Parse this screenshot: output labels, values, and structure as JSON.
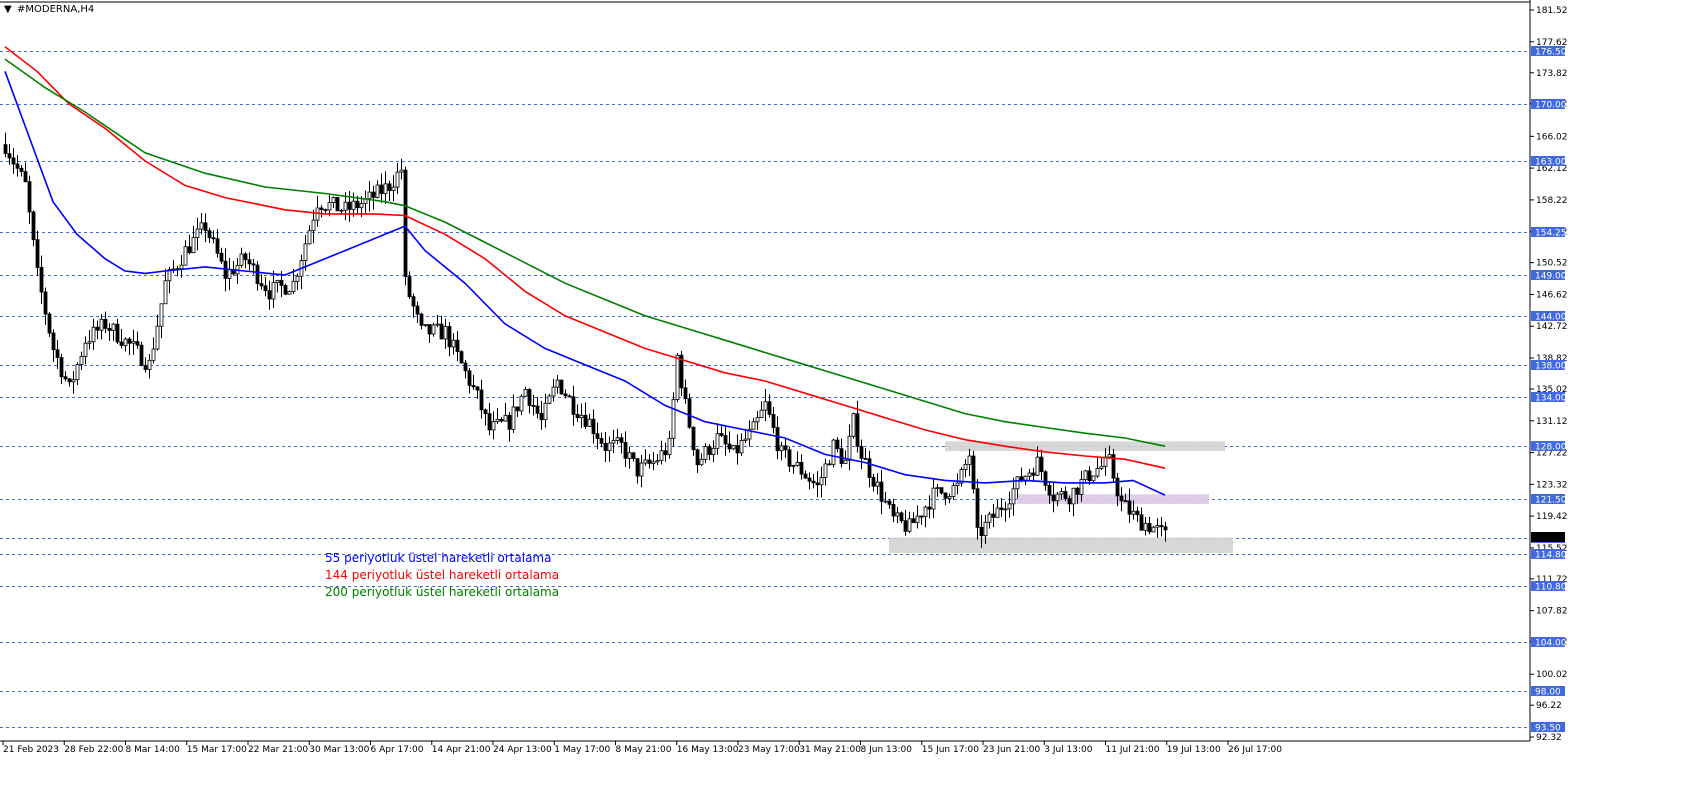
{
  "chart_data": {
    "type": "candlestick",
    "title": "#MODERNA,H4",
    "title_marker": "▼",
    "ylim": [
      92.32,
      181.52
    ],
    "y_ticks": [
      181.52,
      177.62,
      173.82,
      170.02,
      166.02,
      162.12,
      158.22,
      154.32,
      150.52,
      146.62,
      142.72,
      138.82,
      135.02,
      131.12,
      127.22,
      123.32,
      119.42,
      115.52,
      111.72,
      107.82,
      104.02,
      100.02,
      96.22,
      92.32
    ],
    "x_ticks": [
      "21 Feb 2023",
      "28 Feb 22:00",
      "8 Mar 14:00",
      "15 Mar 17:00",
      "22 Mar 21:00",
      "30 Mar 13:00",
      "6 Apr 17:00",
      "14 Apr 21:00",
      "24 Apr 13:00",
      "1 May 17:00",
      "8 May 21:00",
      "16 May 13:00",
      "23 May 17:00",
      "31 May 21:00",
      "8 Jun 13:00",
      "15 Jun 17:00",
      "23 Jun 21:00",
      "3 Jul 13:00",
      "11 Jul 21:00",
      "19 Jul 13:00",
      "26 Jul 17:00"
    ],
    "levels": [
      176.5,
      170.0,
      163.0,
      154.25,
      149.0,
      144.0,
      138.0,
      134.0,
      128.0,
      121.5,
      116.75,
      114.8,
      110.8,
      104.0,
      98.0,
      93.5
    ],
    "level_labels": [
      "176.50",
      "170.00",
      "163.00",
      "154.25",
      "149.00",
      "144.00",
      "138.00",
      "134.00",
      "128.00",
      "121.50",
      "116.75",
      "114.80",
      "110.80",
      "104.00",
      "98.00",
      "93.50"
    ],
    "current_price": 116.9,
    "zones": [
      {
        "name": "resistance-zone-128",
        "from_bar": 235,
        "to_bar": 305,
        "low": 127.4,
        "high": 128.6,
        "color": "#d3d3d3"
      },
      {
        "name": "zone-121-50",
        "from_bar": 253,
        "to_bar": 301,
        "low": 120.9,
        "high": 122.1,
        "color": "#dcc8e8"
      },
      {
        "name": "support-zone-115",
        "from_bar": 221,
        "to_bar": 307,
        "low": 114.9,
        "high": 116.8,
        "color": "#d3d3d3"
      }
    ],
    "price_path": [
      [
        0,
        165
      ],
      [
        5,
        160
      ],
      [
        8,
        149
      ],
      [
        12,
        140
      ],
      [
        16,
        135
      ],
      [
        20,
        141
      ],
      [
        25,
        143
      ],
      [
        32,
        140
      ],
      [
        36,
        138
      ],
      [
        40,
        148
      ],
      [
        45,
        152
      ],
      [
        50,
        155
      ],
      [
        55,
        149
      ],
      [
        60,
        151
      ],
      [
        66,
        147
      ],
      [
        72,
        148
      ],
      [
        78,
        158
      ],
      [
        85,
        157
      ],
      [
        90,
        158
      ],
      [
        96,
        160
      ],
      [
        99,
        162
      ],
      [
        100,
        148
      ],
      [
        104,
        142
      ],
      [
        110,
        142
      ],
      [
        114,
        138
      ],
      [
        118,
        134
      ],
      [
        121,
        130
      ],
      [
        126,
        131
      ],
      [
        130,
        135
      ],
      [
        134,
        131
      ],
      [
        138,
        136
      ],
      [
        142,
        133
      ],
      [
        146,
        131
      ],
      [
        150,
        128
      ],
      [
        154,
        128
      ],
      [
        158,
        125
      ],
      [
        162,
        126
      ],
      [
        166,
        128
      ],
      [
        168,
        139
      ],
      [
        170,
        133
      ],
      [
        173,
        126
      ],
      [
        178,
        129
      ],
      [
        182,
        127
      ],
      [
        187,
        130
      ],
      [
        190,
        133
      ],
      [
        194,
        127
      ],
      [
        199,
        125
      ],
      [
        203,
        123
      ],
      [
        207,
        128
      ],
      [
        210,
        126
      ],
      [
        212,
        131
      ],
      [
        214,
        127
      ],
      [
        218,
        123
      ],
      [
        222,
        119
      ],
      [
        226,
        118
      ],
      [
        232,
        122
      ],
      [
        238,
        123
      ],
      [
        241,
        127
      ],
      [
        243,
        117
      ],
      [
        248,
        120
      ],
      [
        254,
        124
      ],
      [
        258,
        126
      ],
      [
        262,
        122
      ],
      [
        266,
        122
      ],
      [
        272,
        125
      ],
      [
        276,
        126
      ],
      [
        279,
        121
      ],
      [
        283,
        119
      ],
      [
        287,
        118
      ],
      [
        290,
        117
      ]
    ],
    "series": [
      {
        "name": "55 periyotluk üstel hareketli ortalama",
        "color": "#0000ff",
        "points": [
          [
            0,
            174
          ],
          [
            6,
            166
          ],
          [
            12,
            158
          ],
          [
            18,
            154
          ],
          [
            25,
            151
          ],
          [
            30,
            149.5
          ],
          [
            35,
            149.2
          ],
          [
            40,
            149.5
          ],
          [
            50,
            150
          ],
          [
            60,
            149.5
          ],
          [
            70,
            149
          ],
          [
            75,
            150
          ],
          [
            85,
            152
          ],
          [
            95,
            154
          ],
          [
            100,
            155
          ],
          [
            105,
            152
          ],
          [
            115,
            148
          ],
          [
            125,
            143
          ],
          [
            135,
            140
          ],
          [
            145,
            138
          ],
          [
            155,
            136
          ],
          [
            165,
            133
          ],
          [
            175,
            131
          ],
          [
            185,
            130
          ],
          [
            195,
            129
          ],
          [
            205,
            127
          ],
          [
            215,
            126
          ],
          [
            225,
            124.5
          ],
          [
            235,
            123.8
          ],
          [
            245,
            123.5
          ],
          [
            255,
            123.8
          ],
          [
            265,
            123.5
          ],
          [
            275,
            123.5
          ],
          [
            282,
            123.8
          ],
          [
            290,
            122
          ]
        ]
      },
      {
        "name": "144 periyotluk üstel hareketli ortalama",
        "color": "#ff0000",
        "points": [
          [
            0,
            177
          ],
          [
            8,
            174
          ],
          [
            16,
            170
          ],
          [
            25,
            167
          ],
          [
            35,
            163
          ],
          [
            45,
            160
          ],
          [
            55,
            158.5
          ],
          [
            70,
            157
          ],
          [
            80,
            156.5
          ],
          [
            92,
            156.5
          ],
          [
            100,
            156.3
          ],
          [
            110,
            154
          ],
          [
            120,
            151
          ],
          [
            130,
            147
          ],
          [
            140,
            144
          ],
          [
            150,
            142
          ],
          [
            160,
            140
          ],
          [
            170,
            138.5
          ],
          [
            180,
            137
          ],
          [
            190,
            136
          ],
          [
            200,
            134.5
          ],
          [
            210,
            133
          ],
          [
            220,
            131.5
          ],
          [
            230,
            130
          ],
          [
            240,
            128.8
          ],
          [
            250,
            128
          ],
          [
            260,
            127.3
          ],
          [
            270,
            126.8
          ],
          [
            280,
            126.4
          ],
          [
            290,
            125.3
          ]
        ]
      },
      {
        "name": "200 periyotluk üstel hareketli ortalama",
        "color": "#008000",
        "points": [
          [
            0,
            175.5
          ],
          [
            10,
            172
          ],
          [
            20,
            169
          ],
          [
            35,
            164
          ],
          [
            50,
            161.5
          ],
          [
            65,
            159.8
          ],
          [
            80,
            159
          ],
          [
            95,
            158
          ],
          [
            100,
            157.5
          ],
          [
            110,
            155.5
          ],
          [
            120,
            153
          ],
          [
            130,
            150.5
          ],
          [
            140,
            148
          ],
          [
            150,
            146
          ],
          [
            160,
            144
          ],
          [
            170,
            142.5
          ],
          [
            180,
            141
          ],
          [
            190,
            139.5
          ],
          [
            200,
            138
          ],
          [
            210,
            136.5
          ],
          [
            220,
            135
          ],
          [
            230,
            133.5
          ],
          [
            240,
            132
          ],
          [
            250,
            131
          ],
          [
            260,
            130.3
          ],
          [
            270,
            129.6
          ],
          [
            280,
            129
          ],
          [
            290,
            128
          ]
        ]
      }
    ]
  },
  "legend": [
    {
      "text": "55 periyotluk üstel hareketli ortalama",
      "color": "#0000ff"
    },
    {
      "text": "144 periyotluk üstel hareketli ortalama",
      "color": "#ff0000"
    },
    {
      "text": "200 periyotluk üstel hareketli ortalama",
      "color": "#008000"
    }
  ],
  "colors": {
    "level_line": "#4169e1",
    "label_bg": "#4169e1",
    "candle": "#000000",
    "axis": "#000000"
  }
}
